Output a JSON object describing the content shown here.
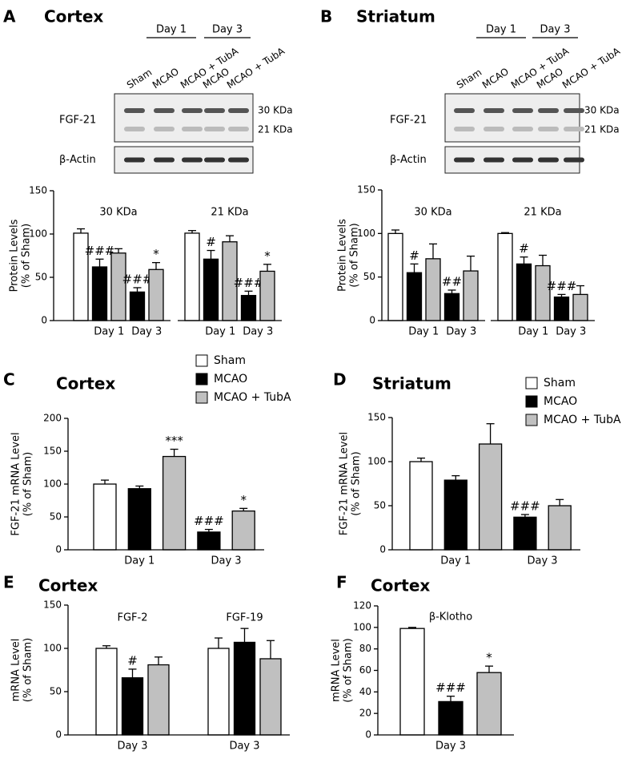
{
  "chart_data": [
    {
      "type": "bar",
      "panel": "A",
      "title": "Cortex",
      "blot": {
        "days": [
          "Day 1",
          "Day 3"
        ],
        "lanes": [
          "Sham",
          "MCAO",
          "MCAO + TubA",
          "MCAO",
          "MCAO + TubA"
        ],
        "rows": [
          {
            "label": "FGF-21",
            "markers": [
              "30 KDa",
              "21 KDa"
            ]
          },
          {
            "label": "β-Actin"
          }
        ]
      },
      "ylabel": [
        "Protein  Levels",
        "(% of Sham)"
      ],
      "ylim": [
        0,
        150
      ],
      "yticks": [
        0,
        50,
        100,
        150
      ],
      "groups": [
        {
          "label": "30 KDa",
          "clusters": [
            {
              "label": null,
              "bars": [
                {
                  "value": 101,
                  "error": 5,
                  "color": "#ffffff"
                }
              ]
            },
            {
              "label": "Day 1",
              "bars": [
                {
                  "value": 62,
                  "error": 9,
                  "color": "#000000",
                  "annotation": "###"
                },
                {
                  "value": 78,
                  "error": 5,
                  "color": "#c0c0c0"
                }
              ]
            },
            {
              "label": "Day 3",
              "bars": [
                {
                  "value": 33,
                  "error": 5,
                  "color": "#000000",
                  "annotation": "###"
                },
                {
                  "value": 59,
                  "error": 8,
                  "color": "#c0c0c0",
                  "annotation": "*"
                }
              ]
            }
          ]
        },
        {
          "label": "21 KDa",
          "clusters": [
            {
              "label": null,
              "bars": [
                {
                  "value": 101,
                  "error": 3,
                  "color": "#ffffff"
                }
              ]
            },
            {
              "label": "Day 1",
              "bars": [
                {
                  "value": 71,
                  "error": 10,
                  "color": "#000000",
                  "annotation": "#"
                },
                {
                  "value": 91,
                  "error": 7,
                  "color": "#c0c0c0"
                }
              ]
            },
            {
              "label": "Day 3",
              "bars": [
                {
                  "value": 29,
                  "error": 5,
                  "color": "#000000",
                  "annotation": "###"
                },
                {
                  "value": 57,
                  "error": 8,
                  "color": "#c0c0c0",
                  "annotation": "*"
                }
              ]
            }
          ]
        }
      ]
    },
    {
      "type": "bar",
      "panel": "B",
      "title": "Striatum",
      "blot": {
        "days": [
          "Day 1",
          "Day 3"
        ],
        "lanes": [
          "Sham",
          "MCAO",
          "MCAO + TubA",
          "MCAO",
          "MCAO + TubA"
        ],
        "rows": [
          {
            "label": "FGF-21",
            "markers": [
              "30 KDa",
              "21 KDa"
            ]
          },
          {
            "label": "β-Actin"
          }
        ]
      },
      "ylabel": [
        "Protein  Levels",
        "(% of Sham)"
      ],
      "ylim": [
        0,
        150
      ],
      "yticks": [
        0,
        50,
        100,
        150
      ],
      "groups": [
        {
          "label": "30 KDa",
          "clusters": [
            {
              "label": null,
              "bars": [
                {
                  "value": 100,
                  "error": 4,
                  "color": "#ffffff"
                }
              ]
            },
            {
              "label": "Day 1",
              "bars": [
                {
                  "value": 55,
                  "error": 10,
                  "color": "#000000",
                  "annotation": "#"
                },
                {
                  "value": 71,
                  "error": 17,
                  "color": "#c0c0c0"
                }
              ]
            },
            {
              "label": "Day 3",
              "bars": [
                {
                  "value": 31,
                  "error": 4,
                  "color": "#000000",
                  "annotation": "##"
                },
                {
                  "value": 57,
                  "error": 17,
                  "color": "#c0c0c0"
                }
              ]
            }
          ]
        },
        {
          "label": "21 KDa",
          "clusters": [
            {
              "label": null,
              "bars": [
                {
                  "value": 100,
                  "error": 1,
                  "color": "#ffffff"
                }
              ]
            },
            {
              "label": "Day 1",
              "bars": [
                {
                  "value": 65,
                  "error": 8,
                  "color": "#000000",
                  "annotation": "#"
                },
                {
                  "value": 63,
                  "error": 12,
                  "color": "#c0c0c0"
                }
              ]
            },
            {
              "label": "Day 3",
              "bars": [
                {
                  "value": 27,
                  "error": 3,
                  "color": "#000000",
                  "annotation": "###"
                },
                {
                  "value": 30,
                  "error": 10,
                  "color": "#c0c0c0"
                }
              ]
            }
          ]
        }
      ]
    },
    {
      "type": "bar",
      "panel": "C",
      "title": "Cortex",
      "legend": [
        {
          "name": "Sham",
          "color": "#ffffff"
        },
        {
          "name": "MCAO",
          "color": "#000000"
        },
        {
          "name": "MCAO + TubA",
          "color": "#c0c0c0"
        }
      ],
      "ylabel": [
        "FGF-21 mRNA Level",
        "(% of Sham)"
      ],
      "ylim": [
        0,
        200
      ],
      "yticks": [
        0,
        50,
        100,
        150,
        200
      ],
      "groups": [
        {
          "clusters": [
            {
              "label": "Day 1",
              "bars": [
                {
                  "value": 100,
                  "error": 6,
                  "color": "#ffffff"
                },
                {
                  "value": 93,
                  "error": 4,
                  "color": "#000000"
                },
                {
                  "value": 142,
                  "error": 11,
                  "color": "#c0c0c0",
                  "annotation": "***"
                }
              ]
            },
            {
              "label": "Day 3",
              "bars": [
                {
                  "value": 27,
                  "error": 4,
                  "color": "#000000",
                  "annotation": "###"
                },
                {
                  "value": 59,
                  "error": 4,
                  "color": "#c0c0c0",
                  "annotation": "*"
                }
              ]
            }
          ]
        }
      ]
    },
    {
      "type": "bar",
      "panel": "D",
      "title": "Striatum",
      "legend": [
        {
          "name": "Sham",
          "color": "#ffffff"
        },
        {
          "name": "MCAO",
          "color": "#000000"
        },
        {
          "name": "MCAO + TubA",
          "color": "#c0c0c0"
        }
      ],
      "ylabel": [
        "FGF-21 mRNA Level",
        "(% of Sham)"
      ],
      "ylim": [
        0,
        150
      ],
      "yticks": [
        0,
        50,
        100,
        150
      ],
      "groups": [
        {
          "clusters": [
            {
              "label": "Day 1",
              "bars": [
                {
                  "value": 100,
                  "error": 4,
                  "color": "#ffffff"
                },
                {
                  "value": 79,
                  "error": 5,
                  "color": "#000000"
                },
                {
                  "value": 120,
                  "error": 23,
                  "color": "#c0c0c0"
                }
              ]
            },
            {
              "label": "Day 3",
              "bars": [
                {
                  "value": 37,
                  "error": 3,
                  "color": "#000000",
                  "annotation": "###"
                },
                {
                  "value": 50,
                  "error": 7,
                  "color": "#c0c0c0"
                }
              ]
            }
          ]
        }
      ]
    },
    {
      "type": "bar",
      "panel": "E",
      "title": "Cortex",
      "ylabel": [
        "mRNA Level",
        "(% of Sham)"
      ],
      "ylim": [
        0,
        150
      ],
      "yticks": [
        0,
        50,
        100,
        150
      ],
      "groups": [
        {
          "label": "FGF-2",
          "clusters": [
            {
              "label": "Day 3",
              "bars": [
                {
                  "value": 100,
                  "error": 3,
                  "color": "#ffffff"
                },
                {
                  "value": 66,
                  "error": 10,
                  "color": "#000000",
                  "annotation": "#"
                },
                {
                  "value": 81,
                  "error": 9,
                  "color": "#c0c0c0"
                }
              ]
            }
          ]
        },
        {
          "label": "FGF-19",
          "clusters": [
            {
              "label": "Day 3",
              "bars": [
                {
                  "value": 100,
                  "error": 12,
                  "color": "#ffffff"
                },
                {
                  "value": 107,
                  "error": 16,
                  "color": "#000000"
                },
                {
                  "value": 88,
                  "error": 21,
                  "color": "#c0c0c0"
                }
              ]
            }
          ]
        }
      ]
    },
    {
      "type": "bar",
      "panel": "F",
      "title": "Cortex",
      "ylabel": [
        "mRNA Level",
        "(% of Sham)"
      ],
      "ylim": [
        0,
        120
      ],
      "yticks": [
        0,
        20,
        40,
        60,
        80,
        100,
        120
      ],
      "groups": [
        {
          "label": "β-Klotho",
          "clusters": [
            {
              "label": "Day 3",
              "bars": [
                {
                  "value": 99,
                  "error": 1,
                  "color": "#ffffff"
                },
                {
                  "value": 31,
                  "error": 5,
                  "color": "#000000",
                  "annotation": "###"
                },
                {
                  "value": 58,
                  "error": 6,
                  "color": "#c0c0c0",
                  "annotation": "*"
                }
              ]
            }
          ]
        }
      ]
    }
  ]
}
